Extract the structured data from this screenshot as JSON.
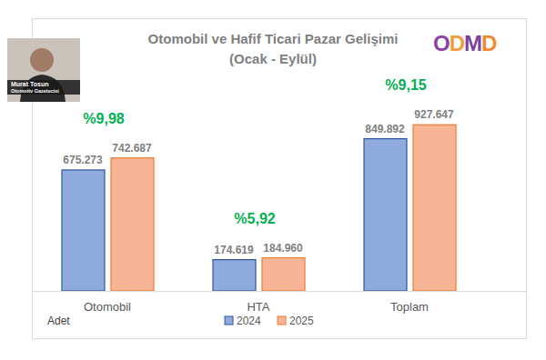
{
  "chart_data": {
    "type": "bar",
    "title": "Otomobil ve Hafif Ticari Pazar Gelişimi",
    "subtitle": "(Ocak - Eylül)",
    "y_label": "Adet",
    "categories": [
      "Otomobil",
      "HTA",
      "Toplam"
    ],
    "series": [
      {
        "name": "2024",
        "color": "#8faadc",
        "values": [
          675273,
          174619,
          849892
        ],
        "value_labels": [
          "675.273",
          "174.619",
          "849.892"
        ]
      },
      {
        "name": "2025",
        "color": "#f8b595",
        "values": [
          742687,
          184960,
          927647
        ],
        "value_labels": [
          "742.687",
          "184.960",
          "927.647"
        ]
      }
    ],
    "annotations": [
      "%9,98",
      "%5,92",
      "%9,15"
    ],
    "ylim": [
      0,
      1000000
    ],
    "yticks": [],
    "tick_labels": "x",
    "data_labels": true,
    "grid": false,
    "legend": "bottom",
    "logo": "ODMD",
    "author": "Murat Tosun",
    "author_role": "Otomotiv Gazetecisi"
  }
}
